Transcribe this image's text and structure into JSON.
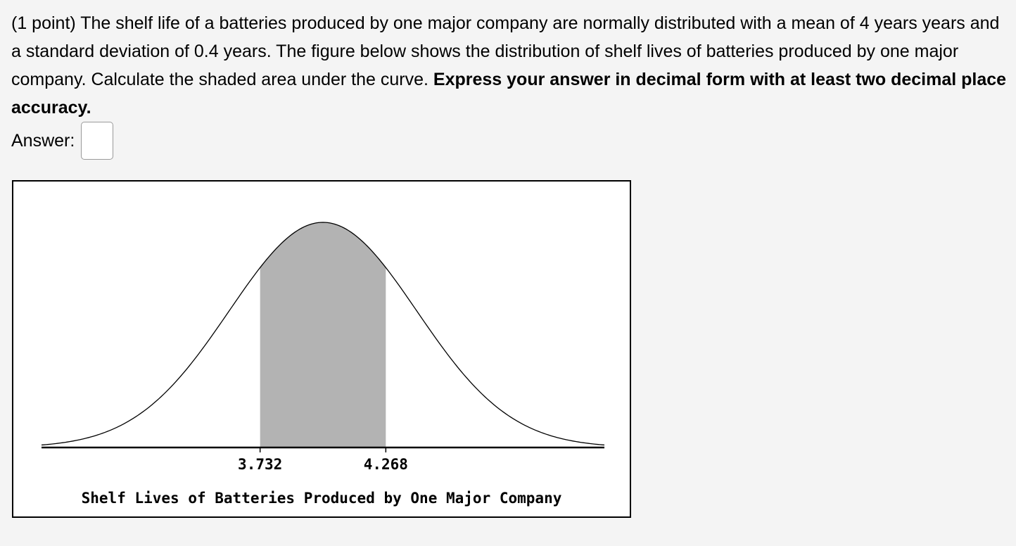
{
  "problem": {
    "text_plain": "(1 point) The shelf life of a batteries produced by one major company are normally distributed with a mean of 4 years years and a standard deviation of 0.4 years. The figure below shows the distribution of shelf lives of batteries produced by one major company. Calculate the shaded area under the curve. ",
    "text_bold": "Express your answer in decimal form with at least two decimal place accuracy."
  },
  "answer": {
    "label": "Answer:",
    "value": ""
  },
  "chart_data": {
    "type": "area",
    "distribution": "normal",
    "mean": 4,
    "sd": 0.4,
    "xlim": [
      2.8,
      5.2
    ],
    "shaded_from": 3.732,
    "shaded_to": 4.268,
    "tick_labels": [
      "3.732",
      "4.268"
    ],
    "xlabel": "Shelf Lives of Batteries Produced by One Major Company",
    "shade_color": "#b3b3b3",
    "line_color": "#000000"
  }
}
